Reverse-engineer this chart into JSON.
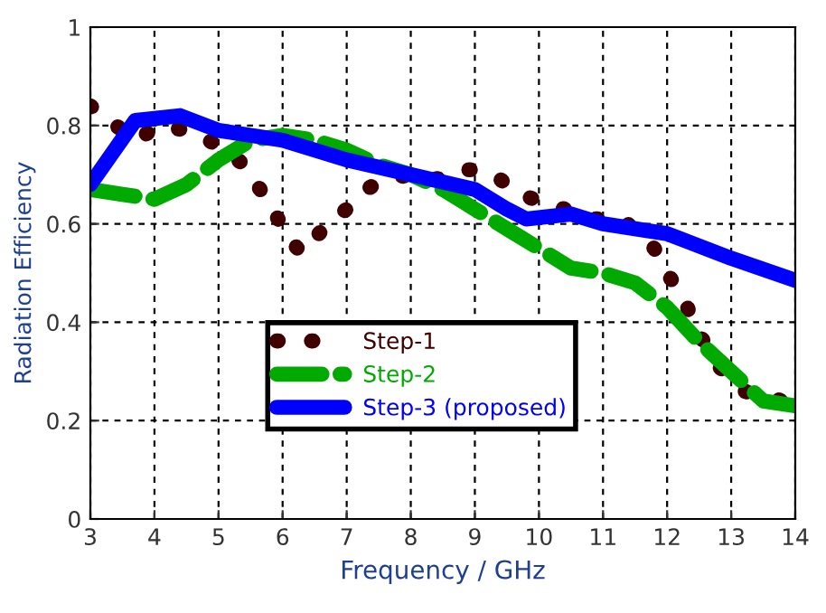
{
  "chart_data": {
    "type": "line",
    "xlabel": "Frequency / GHz",
    "ylabel": "Radiation Efficiency",
    "xlim": [
      3,
      14
    ],
    "ylim": [
      0,
      1
    ],
    "xticks": [
      3,
      4,
      5,
      6,
      7,
      8,
      9,
      10,
      11,
      12,
      13,
      14
    ],
    "yticks": [
      0,
      0.2,
      0.4,
      0.6,
      0.8,
      1
    ],
    "grid": true,
    "legend": "bottom",
    "series": [
      {
        "name": "Step-1",
        "color": "#400000",
        "line_style": "dotted",
        "x": [
          3,
          3.4,
          3.7,
          4.1,
          4.5,
          5,
          5.4,
          5.6,
          5.8,
          6.1,
          6.3,
          6.7,
          7.0,
          7.3,
          7.6,
          8,
          8.5,
          8.8,
          9.0,
          9.3,
          9.6,
          9.7,
          10.4,
          10.8,
          11.3,
          11.8,
          12,
          12.3,
          12.4,
          12.7,
          12.8,
          13,
          13.2,
          13.5,
          13.8,
          14
        ],
        "values": [
          0.84,
          0.8,
          0.77,
          0.8,
          0.79,
          0.76,
          0.72,
          0.68,
          0.64,
          0.57,
          0.54,
          0.6,
          0.63,
          0.67,
          0.69,
          0.7,
          0.69,
          0.71,
          0.71,
          0.7,
          0.67,
          0.66,
          0.63,
          0.61,
          0.61,
          0.55,
          0.5,
          0.44,
          0.39,
          0.34,
          0.31,
          0.29,
          0.26,
          0.25,
          0.24,
          0.23
        ]
      },
      {
        "name": "Step-2",
        "color": "#00aa00",
        "line_style": "dashed",
        "x": [
          3,
          3.5,
          4,
          4.5,
          5,
          5.5,
          6,
          6.5,
          7,
          7.5,
          8,
          8.5,
          9,
          9.5,
          10,
          10.5,
          11,
          11.5,
          12,
          12.5,
          13,
          13.5,
          14
        ],
        "values": [
          0.67,
          0.66,
          0.65,
          0.68,
          0.73,
          0.77,
          0.78,
          0.77,
          0.75,
          0.72,
          0.7,
          0.67,
          0.63,
          0.59,
          0.55,
          0.51,
          0.5,
          0.48,
          0.43,
          0.36,
          0.3,
          0.24,
          0.23
        ]
      },
      {
        "name": "Step-3 (proposed)",
        "color": "#0000ff",
        "line_style": "solid",
        "x": [
          3,
          3.7,
          4.4,
          5,
          6,
          7,
          8,
          9,
          9.5,
          9.8,
          10.5,
          11,
          12,
          13,
          14
        ],
        "values": [
          0.68,
          0.81,
          0.82,
          0.79,
          0.77,
          0.73,
          0.7,
          0.67,
          0.63,
          0.61,
          0.62,
          0.6,
          0.58,
          0.53,
          0.485
        ]
      }
    ]
  }
}
